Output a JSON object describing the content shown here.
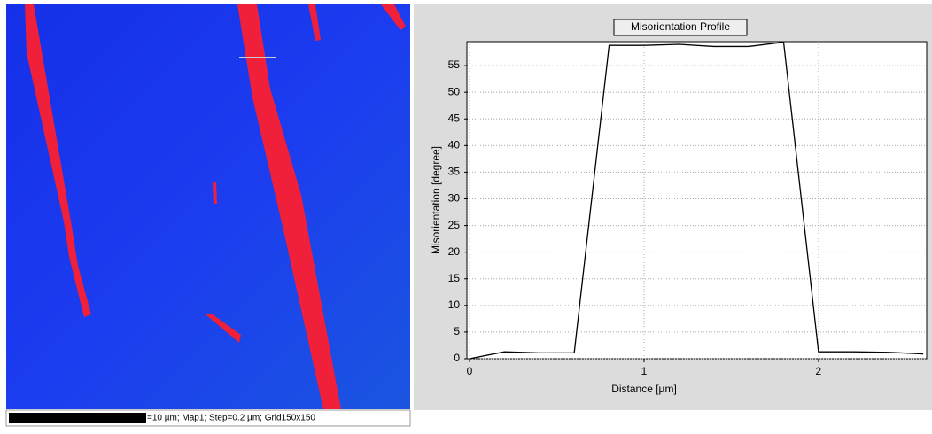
{
  "map": {
    "caption": "=10 µm; Map1; Step=0.2 µm; Grid150x150"
  },
  "chart_data": {
    "type": "line",
    "title": "Misorientation Profile",
    "x_label": "Distance [µm]",
    "y_label": "Misorientation [degree]",
    "x": [
      0,
      0.2,
      0.4,
      0.6,
      0.8,
      1.0,
      1.2,
      1.4,
      1.6,
      1.8,
      2.0,
      2.2,
      2.4,
      2.6
    ],
    "values": [
      0,
      1.3,
      1.1,
      1.1,
      58.8,
      58.8,
      59.0,
      58.6,
      58.6,
      59.4,
      1.3,
      1.3,
      1.2,
      0.9
    ],
    "color": "#000000",
    "xlim": [
      0,
      2.62
    ],
    "xticks": [
      0,
      1,
      2
    ],
    "ylim": [
      0,
      59.5
    ],
    "yticks": [
      0,
      5,
      10,
      15,
      20,
      25,
      30,
      35,
      40,
      45,
      50,
      55
    ],
    "grid": true
  }
}
